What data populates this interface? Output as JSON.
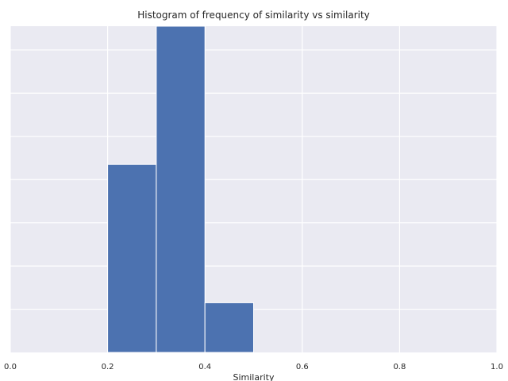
{
  "chart_data": {
    "type": "bar",
    "title": "Histogram of frequency of similarity vs similarity",
    "xlabel": "Similarity",
    "ylabel": "",
    "xlim": [
      0,
      1
    ],
    "ylim": [
      0,
      7.55
    ],
    "x_ticks": [
      "0.0",
      "0.2",
      "0.4",
      "0.6",
      "0.8",
      "1.0"
    ],
    "y_grid_values": [
      1,
      2,
      3,
      4,
      5,
      6,
      7
    ],
    "bins": [
      {
        "x_start": 0.2,
        "x_end": 0.3,
        "value": 4.35
      },
      {
        "x_start": 0.3,
        "x_end": 0.4,
        "value": 7.55
      },
      {
        "x_start": 0.4,
        "x_end": 0.5,
        "value": 1.15
      }
    ],
    "grid": true,
    "colors": {
      "bar": "#4c72b0",
      "bar_edge": "#ffffff",
      "plot_background": "#eaeaf2",
      "grid": "#ffffff"
    }
  }
}
